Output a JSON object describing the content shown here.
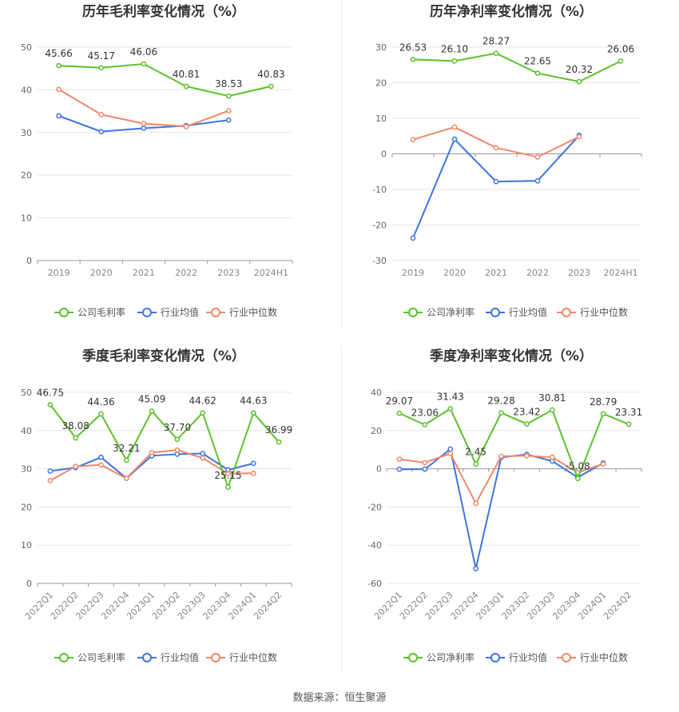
{
  "source_text": "数据来源：恒生聚源",
  "colors": {
    "company": "#5cc12b",
    "avg": "#3f74e0",
    "median": "#f2876a",
    "grid": "#e6e6e6",
    "text": "#666666"
  },
  "chart_data": [
    {
      "type": "line",
      "title": "历年毛利率变化情况（%）",
      "categories": [
        "2019",
        "2020",
        "2021",
        "2022",
        "2023",
        "2024H1"
      ],
      "ylim": [
        0,
        50
      ],
      "yticks": [
        0,
        10,
        20,
        30,
        40,
        50
      ],
      "rotate_x": false,
      "show_labels_for": "公司毛利率",
      "series": [
        {
          "name": "公司毛利率",
          "key": "company",
          "values": [
            45.66,
            45.17,
            46.06,
            40.81,
            38.53,
            40.83
          ]
        },
        {
          "name": "行业均值",
          "key": "avg",
          "values": [
            33.9,
            30.2,
            31.0,
            31.6,
            32.9,
            null
          ]
        },
        {
          "name": "行业中位数",
          "key": "median",
          "values": [
            40.1,
            34.2,
            32.1,
            31.4,
            35.1,
            null
          ]
        }
      ]
    },
    {
      "type": "line",
      "title": "历年净利率变化情况（%）",
      "categories": [
        "2019",
        "2020",
        "2021",
        "2022",
        "2023",
        "2024H1"
      ],
      "ylim": [
        -30,
        30
      ],
      "yticks": [
        -30,
        -20,
        -10,
        0,
        10,
        20,
        30
      ],
      "rotate_x": false,
      "show_labels_for": "公司净利率",
      "series": [
        {
          "name": "公司净利率",
          "key": "company",
          "values": [
            26.53,
            26.1,
            28.27,
            22.65,
            20.32,
            26.06
          ]
        },
        {
          "name": "行业均值",
          "key": "avg",
          "values": [
            -23.7,
            4.1,
            -7.8,
            -7.6,
            5.2,
            null
          ]
        },
        {
          "name": "行业中位数",
          "key": "median",
          "values": [
            4.0,
            7.5,
            1.7,
            -0.9,
            4.8,
            null
          ]
        }
      ]
    },
    {
      "type": "line",
      "title": "季度毛利率变化情况（%）",
      "categories": [
        "2022Q1",
        "2022Q2",
        "2022Q3",
        "2022Q4",
        "2023Q1",
        "2023Q2",
        "2023Q3",
        "2023Q4",
        "2024Q1",
        "2024Q2"
      ],
      "ylim": [
        0,
        50
      ],
      "yticks": [
        0,
        10,
        20,
        30,
        40,
        50
      ],
      "rotate_x": true,
      "show_labels_for": "公司毛利率",
      "series": [
        {
          "name": "公司毛利率",
          "key": "company",
          "values": [
            46.75,
            38.08,
            44.36,
            32.21,
            45.09,
            37.7,
            44.62,
            25.15,
            44.63,
            36.99
          ]
        },
        {
          "name": "行业均值",
          "key": "avg",
          "values": [
            29.4,
            30.3,
            33.0,
            27.5,
            33.4,
            33.8,
            34.0,
            29.7,
            31.4,
            null
          ]
        },
        {
          "name": "行业中位数",
          "key": "median",
          "values": [
            26.9,
            30.6,
            31.0,
            27.5,
            34.2,
            34.9,
            32.8,
            28.7,
            28.8,
            null
          ]
        }
      ]
    },
    {
      "type": "line",
      "title": "季度净利率变化情况（%）",
      "categories": [
        "2022Q1",
        "2022Q2",
        "2022Q3",
        "2022Q4",
        "2023Q1",
        "2023Q2",
        "2023Q3",
        "2023Q4",
        "2024Q1",
        "2024Q2"
      ],
      "ylim": [
        -60,
        40
      ],
      "yticks": [
        -60,
        -40,
        -20,
        0,
        20,
        40
      ],
      "rotate_x": true,
      "show_labels_for": "公司净利率",
      "series": [
        {
          "name": "公司净利率",
          "key": "company",
          "values": [
            29.07,
            23.06,
            31.43,
            2.45,
            29.28,
            23.42,
            30.81,
            -5.08,
            28.79,
            23.31
          ]
        },
        {
          "name": "行业均值",
          "key": "avg",
          "values": [
            -0.3,
            -0.2,
            10.3,
            -52.3,
            6.0,
            7.5,
            4.0,
            -4.5,
            3.0,
            null
          ]
        },
        {
          "name": "行业中位数",
          "key": "median",
          "values": [
            5.0,
            3.2,
            8.0,
            -18.1,
            6.5,
            6.8,
            6.0,
            -2.0,
            2.5,
            null
          ]
        }
      ]
    }
  ]
}
